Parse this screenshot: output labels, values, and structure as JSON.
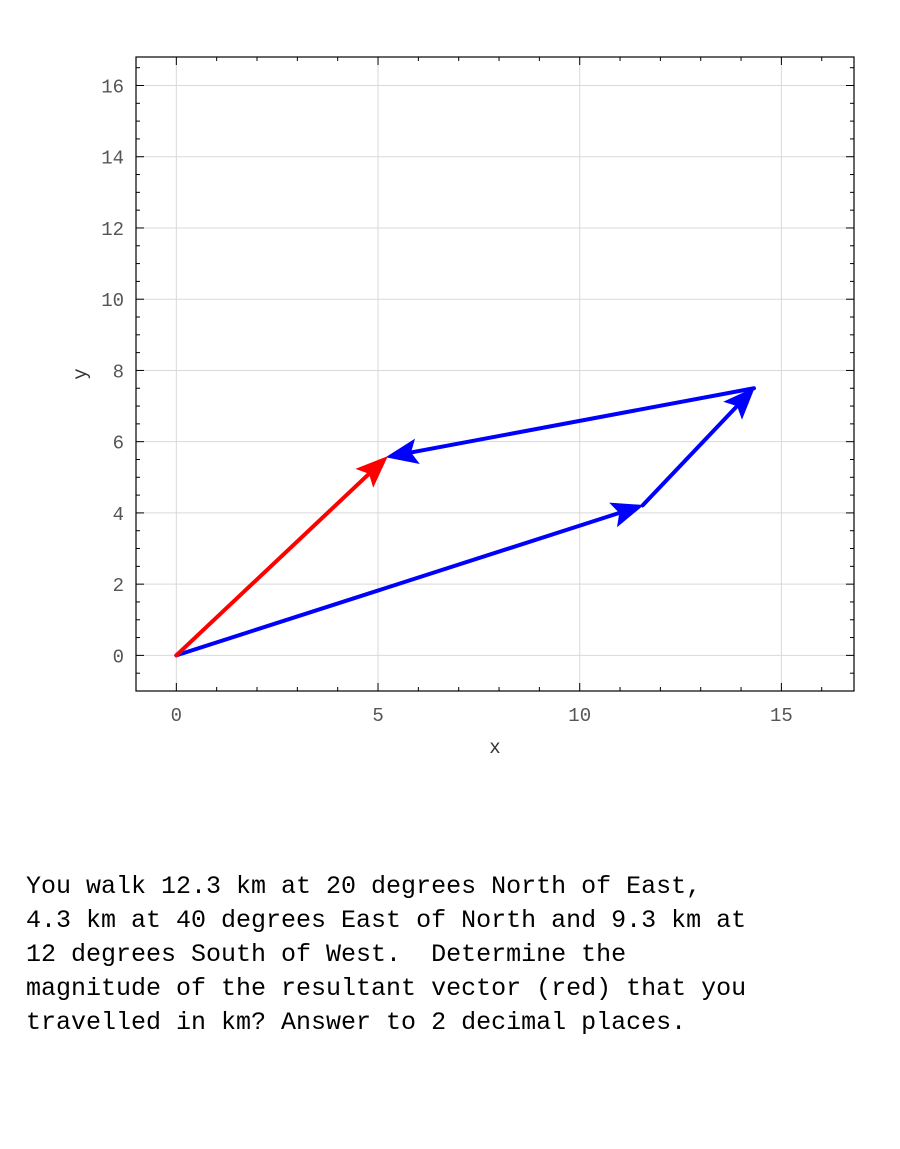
{
  "chart_data": {
    "type": "vector-diagram",
    "xlabel": "x",
    "ylabel": "y",
    "xlim": [
      -1,
      16.8
    ],
    "ylim": [
      -1,
      16.8
    ],
    "xticks": [
      0,
      5,
      10,
      15
    ],
    "yticks": [
      0,
      2,
      4,
      6,
      8,
      10,
      12,
      14,
      16
    ],
    "grid": true,
    "vectors": [
      {
        "name": "",
        "color": "#0000ff",
        "from": [
          0,
          0
        ],
        "to": [
          11.56,
          4.21
        ]
      },
      {
        "name": "",
        "color": "#0000ff",
        "from": [
          11.56,
          4.21
        ],
        "to": [
          14.32,
          7.5
        ]
      },
      {
        "name": "",
        "color": "#0000ff",
        "from": [
          14.32,
          7.5
        ],
        "to": [
          5.22,
          5.57
        ]
      },
      {
        "name": "resultant",
        "color": "#ff0000",
        "from": [
          0,
          0
        ],
        "to": [
          5.22,
          5.57
        ]
      }
    ]
  },
  "question": {
    "lines": [
      "You walk 12.3 km at 20 degrees North of East,",
      "4.3 km at 40 degrees East of North and 9.3 km at",
      "12 degrees South of West.  Determine the",
      "magnitude of the resultant vector (red) that you",
      "travelled in km? Answer to 2 decimal places."
    ]
  }
}
